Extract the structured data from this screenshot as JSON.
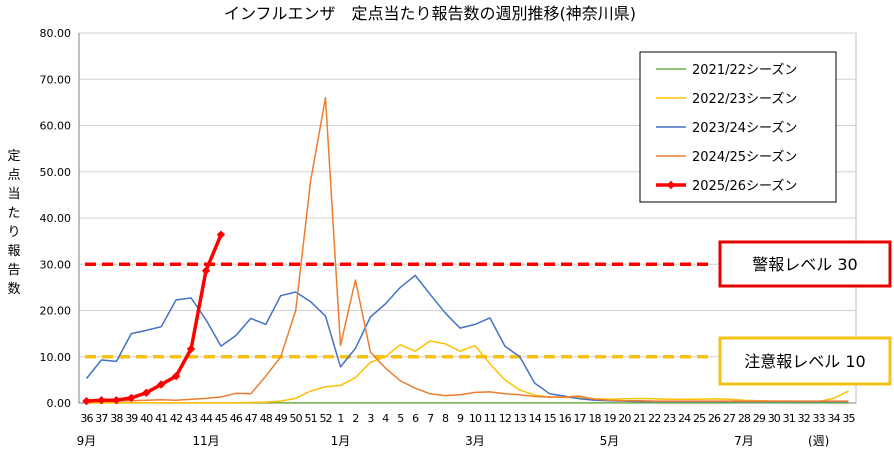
{
  "chart_data": {
    "type": "line",
    "title": "インフルエンザ　定点当たり報告数の週別推移(神奈川県)",
    "ylabel": "定点当たり報告数",
    "y_ticks": [
      "0.00",
      "10.00",
      "20.00",
      "30.00",
      "40.00",
      "50.00",
      "60.00",
      "70.00",
      "80.00"
    ],
    "ylim": [
      0,
      80
    ],
    "grid": true,
    "legend_position": "top-right",
    "week_labels": [
      "36",
      "37",
      "38",
      "39",
      "40",
      "41",
      "42",
      "43",
      "44",
      "45",
      "46",
      "47",
      "48",
      "49",
      "50",
      "51",
      "52",
      "1",
      "2",
      "3",
      "4",
      "5",
      "6",
      "7",
      "8",
      "9",
      "10",
      "11",
      "12",
      "13",
      "14",
      "15",
      "16",
      "17",
      "18",
      "19",
      "20",
      "21",
      "22",
      "23",
      "24",
      "25",
      "26",
      "27",
      "28",
      "29",
      "30",
      "31",
      "32",
      "33",
      "34",
      "35"
    ],
    "month_labels": [
      {
        "text": "9月",
        "week_index": 0
      },
      {
        "text": "11月",
        "week_index": 8
      },
      {
        "text": "1月",
        "week_index": 17
      },
      {
        "text": "3月",
        "week_index": 26
      },
      {
        "text": "5月",
        "week_index": 35
      },
      {
        "text": "7月",
        "week_index": 44
      },
      {
        "text": "(週)",
        "week_index": 49
      }
    ],
    "series": [
      {
        "name": "2021/22シーズン",
        "color": "#70ad47",
        "width": 1.5,
        "marker": "none",
        "values": [
          0.02,
          0.02,
          0.02,
          0.02,
          0.02,
          0.02,
          0.02,
          0.02,
          0.02,
          0.02,
          0.02,
          0.02,
          0.02,
          0.02,
          0.02,
          0.02,
          0.02,
          0.02,
          0.02,
          0.02,
          0.02,
          0.02,
          0.02,
          0.02,
          0.02,
          0.02,
          0.02,
          0.02,
          0.02,
          0.02,
          0.02,
          0.02,
          0.02,
          0.02,
          0.02,
          0.02,
          0.02,
          0.02,
          0.02,
          0.02,
          0.02,
          0.02,
          0.02,
          0.02,
          0.02,
          0.02,
          0.02,
          0.02,
          0.02,
          0.02,
          0.02,
          0.02
        ]
      },
      {
        "name": "2022/23シーズン",
        "color": "#ffc000",
        "width": 1.5,
        "marker": "none",
        "values": [
          0.05,
          0.05,
          0.05,
          0.05,
          0.05,
          0.05,
          0.05,
          0.05,
          0.05,
          0.05,
          0.05,
          0.1,
          0.2,
          0.4,
          1.0,
          2.6,
          3.5,
          3.8,
          5.5,
          8.8,
          10.0,
          12.6,
          11.2,
          13.4,
          12.8,
          11.2,
          12.4,
          8.5,
          5.0,
          2.8,
          1.7,
          1.3,
          1.2,
          1.1,
          0.9,
          0.8,
          0.9,
          1.0,
          0.9,
          0.8,
          0.8,
          0.8,
          0.9,
          0.8,
          0.6,
          0.5,
          0.4,
          0.4,
          0.3,
          0.3,
          1.0,
          2.6
        ]
      },
      {
        "name": "2023/24シーズン",
        "color": "#4472c4",
        "width": 1.5,
        "marker": "none",
        "values": [
          5.3,
          9.3,
          9.0,
          15.0,
          15.7,
          16.5,
          22.3,
          22.7,
          18.0,
          12.3,
          14.6,
          18.3,
          17.0,
          23.2,
          24.0,
          21.9,
          18.8,
          7.8,
          11.8,
          18.6,
          21.4,
          25.0,
          27.6,
          23.5,
          19.5,
          16.2,
          17.0,
          18.4,
          12.3,
          10.0,
          4.3,
          2.0,
          1.5,
          0.9,
          0.6,
          0.5,
          0.4,
          0.3,
          0.3,
          0.3,
          0.3,
          0.3,
          0.3,
          0.3,
          0.3,
          0.3,
          0.3,
          0.3,
          0.3,
          0.3,
          0.3,
          0.3
        ]
      },
      {
        "name": "2024/25シーズン",
        "color": "#ed7d31",
        "width": 1.5,
        "marker": "none",
        "values": [
          0.6,
          0.5,
          0.5,
          0.5,
          0.6,
          0.7,
          0.6,
          0.8,
          1.0,
          1.3,
          2.1,
          2.0,
          5.8,
          10.0,
          20.0,
          48.0,
          66.0,
          12.4,
          26.6,
          11.0,
          7.6,
          4.8,
          3.2,
          2.0,
          1.6,
          1.8,
          2.3,
          2.4,
          2.0,
          1.8,
          1.4,
          1.3,
          1.3,
          1.5,
          0.8,
          0.6,
          0.5,
          0.5,
          0.4,
          0.4,
          0.4,
          0.4,
          0.4,
          0.4,
          0.4,
          0.4,
          0.4,
          0.4,
          0.4,
          0.4,
          0.4,
          0.4
        ]
      },
      {
        "name": "2025/26シーズン",
        "color": "#ff0000",
        "width": 3.5,
        "marker": "diamond",
        "values": [
          0.4,
          0.6,
          0.6,
          1.1,
          2.2,
          4.0,
          5.8,
          11.7,
          28.6,
          36.4
        ]
      }
    ],
    "reference_lines": [
      {
        "value": 30,
        "color": "#ff0000",
        "label": "警報レベル 30",
        "box_color": "#e00000"
      },
      {
        "value": 10,
        "color": "#f2c314",
        "label": "注意報レベル 10",
        "box_color": "#f2c314"
      }
    ]
  }
}
